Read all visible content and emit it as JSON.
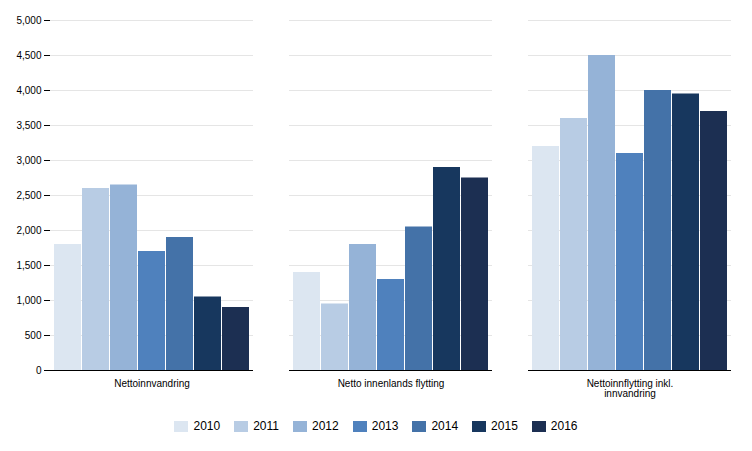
{
  "chart_data": {
    "type": "bar",
    "categories": [
      "Nettoinnvandring",
      "Netto innenlands flytting",
      "Nettoinnflytting inkl.\ninnvandring"
    ],
    "series": [
      {
        "name": "2010",
        "color": "#dce6f1",
        "values": [
          1800,
          1400,
          3200
        ]
      },
      {
        "name": "2011",
        "color": "#b8cce4",
        "values": [
          2600,
          950,
          3600
        ]
      },
      {
        "name": "2012",
        "color": "#95b3d7",
        "values": [
          2650,
          1800,
          4500
        ]
      },
      {
        "name": "2013",
        "color": "#4f81bd",
        "values": [
          1700,
          1300,
          3100
        ]
      },
      {
        "name": "2014",
        "color": "#4472a8",
        "values": [
          1900,
          2050,
          4000
        ]
      },
      {
        "name": "2015",
        "color": "#17375e",
        "values": [
          1050,
          2900,
          3950
        ]
      },
      {
        "name": "2016",
        "color": "#1c2f52",
        "values": [
          900,
          2750,
          3700
        ]
      }
    ],
    "ylim": [
      0,
      5000
    ],
    "yticks": [
      0,
      500,
      1000,
      1500,
      2000,
      2500,
      3000,
      3500,
      4000,
      4500,
      5000
    ],
    "grid": true,
    "legend": "bottom"
  }
}
